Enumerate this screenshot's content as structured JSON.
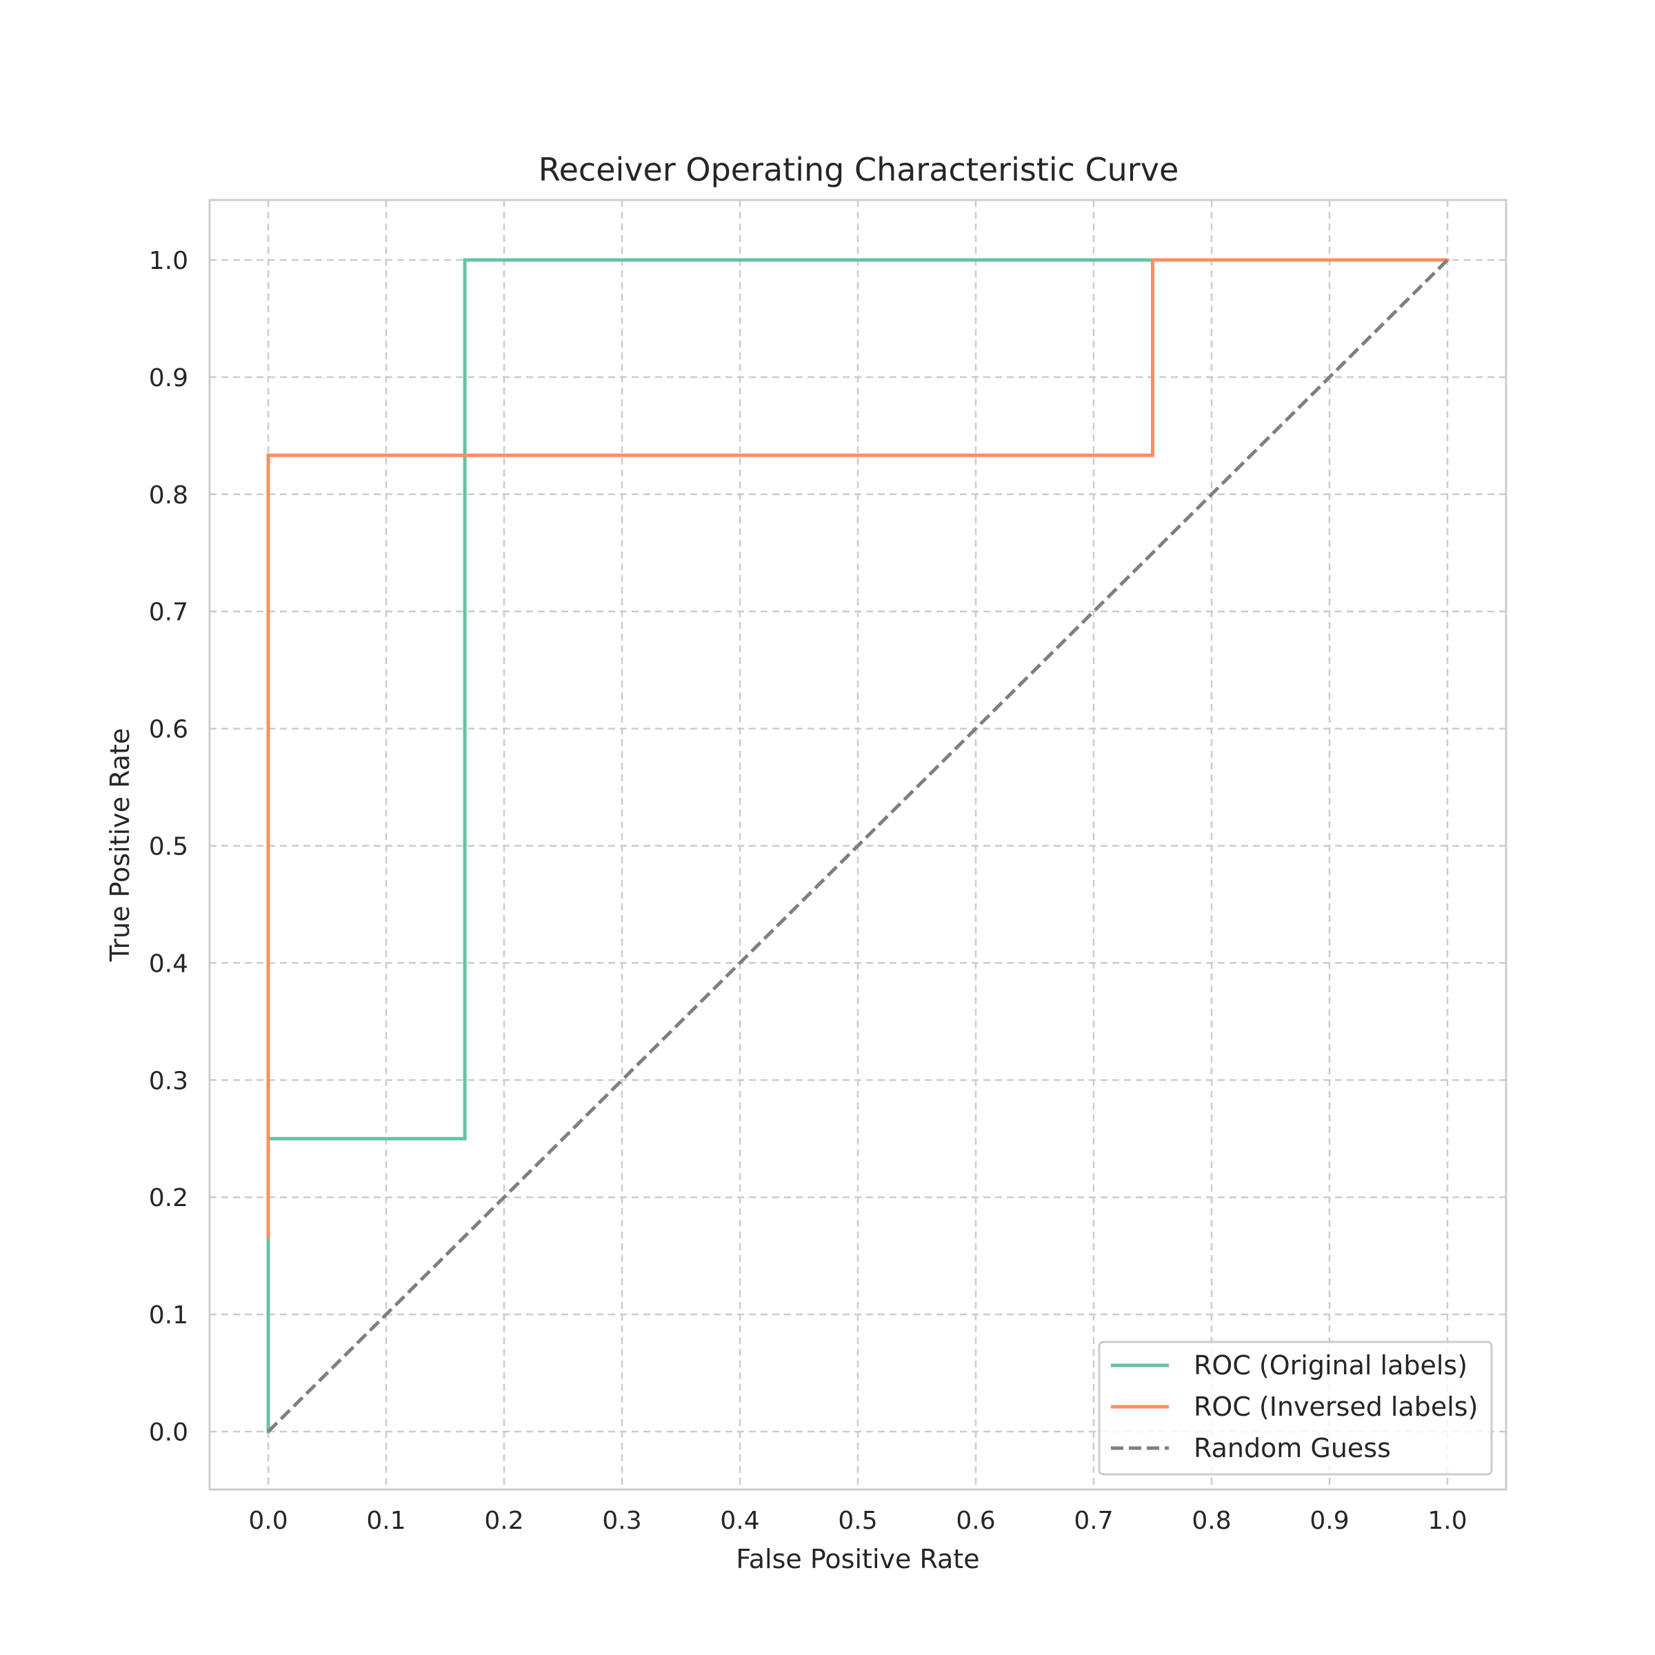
{
  "chart_data": {
    "type": "line",
    "title": "Receiver Operating Characteristic Curve",
    "xlabel": "False Positive Rate",
    "ylabel": "True Positive Rate",
    "xlim": [
      -0.05,
      1.05
    ],
    "ylim": [
      -0.05,
      1.05
    ],
    "xticks": [
      "0.0",
      "0.1",
      "0.2",
      "0.3",
      "0.4",
      "0.5",
      "0.6",
      "0.7",
      "0.8",
      "0.9",
      "1.0"
    ],
    "yticks": [
      "0.0",
      "0.1",
      "0.2",
      "0.3",
      "0.4",
      "0.5",
      "0.6",
      "0.7",
      "0.8",
      "0.9",
      "1.0"
    ],
    "grid": true,
    "grid_style": "dashed",
    "legend_position": "lower right",
    "series": [
      {
        "name": "ROC (Original labels)",
        "color": "#66c2a5",
        "style": "solid",
        "x": [
          0.0,
          0.0,
          0.1667,
          0.1667,
          1.0
        ],
        "y": [
          0.0,
          0.25,
          0.25,
          1.0,
          1.0
        ]
      },
      {
        "name": "ROC (Inversed labels)",
        "color": "#fc8d62",
        "style": "solid",
        "x": [
          0.0,
          0.0,
          0.75,
          0.75,
          1.0
        ],
        "y": [
          0.1667,
          0.8333,
          0.8333,
          1.0,
          1.0
        ]
      },
      {
        "name": "Random Guess",
        "color": "#7f7f7f",
        "style": "dashed",
        "x": [
          0.0,
          1.0
        ],
        "y": [
          0.0,
          1.0
        ]
      }
    ]
  }
}
